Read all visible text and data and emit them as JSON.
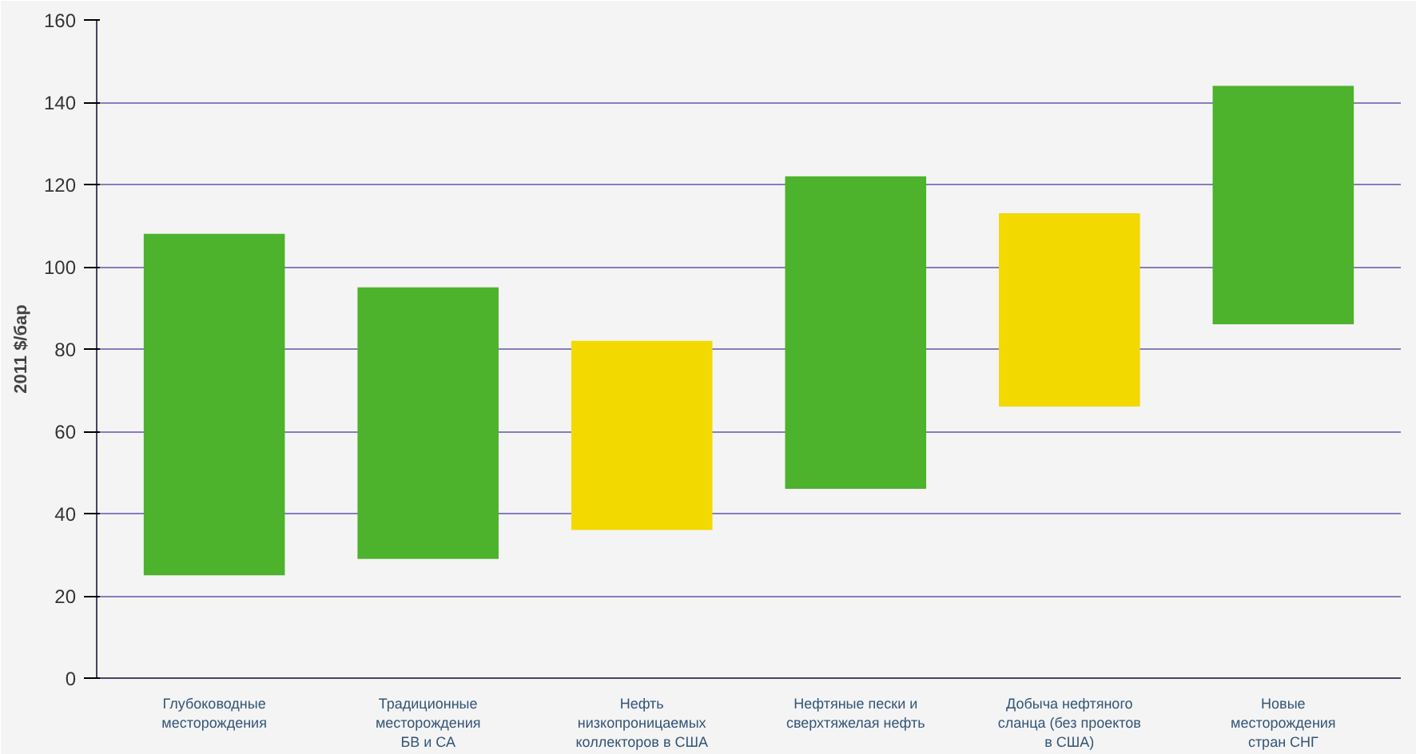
{
  "chart_data": {
    "type": "bar",
    "ylabel": "2011 $/бар",
    "categories": [
      "Глубоководные\nместорождения",
      "Традиционные\nместорождения\nБВ и СА",
      "Нефть\nнизкопроницаемых\nколлекторов в США",
      "Нефтяные пески и\nсверхтяжелая нефть",
      "Добыча нефтяного\nсланца (без проектов\nв США)",
      "Новые\nместорождения\nстран СНГ"
    ],
    "base": [
      25,
      29,
      36,
      46,
      66,
      86
    ],
    "values": [
      83,
      66,
      46,
      76,
      47,
      58
    ],
    "colors": [
      "#4db22c",
      "#4db22c",
      "#f2d900",
      "#4db22c",
      "#f2d900",
      "#4db22c"
    ],
    "ylim": [
      0,
      160
    ],
    "yticks": [
      0,
      20,
      40,
      60,
      80,
      100,
      120,
      140,
      160
    ],
    "grid": "y"
  }
}
